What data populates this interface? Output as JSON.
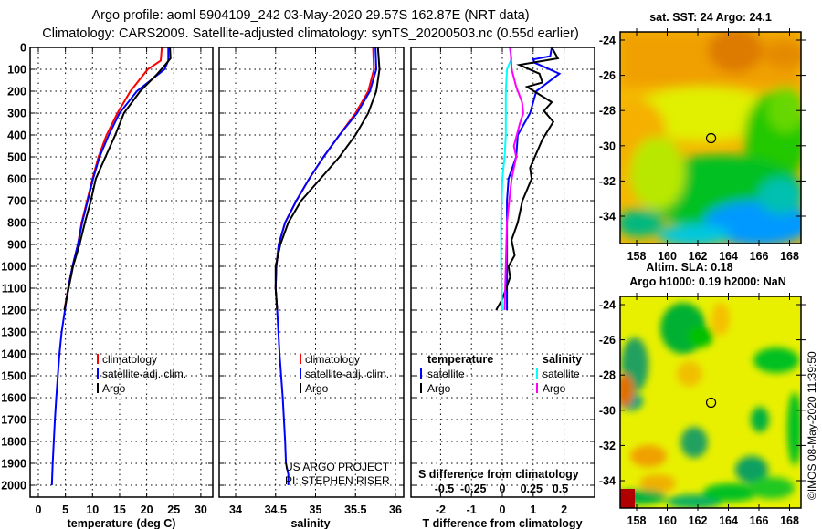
{
  "header": {
    "title_line1": "Argo profile: aoml 5904109_242 03-May-2020 29.57S 162.87E (NRT data)",
    "title_line2": "Climatology: CARS2009. Satellite-adjusted climatology: synTS_20200503.nc (0.55d earlier)"
  },
  "colors": {
    "climatology": "#ff0000",
    "satellite": "#0000ff",
    "argo": "#000000",
    "sat_salinity": "#00ffff",
    "argo_salinity": "#ff00ff"
  },
  "chart_data": [
    {
      "type": "line",
      "id": "temperature",
      "xlabel": "temperature (deg C)",
      "ylabel": "depth",
      "xlim": [
        -1,
        31
      ],
      "ylim": [
        2000,
        0
      ],
      "xticks": [
        "0",
        "5",
        "10",
        "15",
        "20",
        "25",
        "30"
      ],
      "yticks": [
        "0",
        "100",
        "200",
        "300",
        "400",
        "500",
        "600",
        "700",
        "800",
        "900",
        "1000",
        "1100",
        "1200",
        "1300",
        "1400",
        "1500",
        "1600",
        "1700",
        "1800",
        "1900",
        "2000"
      ],
      "legend": [
        "climatology",
        "satellite-adj. clim.",
        "Argo"
      ],
      "series": [
        {
          "name": "climatology",
          "color": "#ff0000",
          "points": [
            [
              0,
              22.8
            ],
            [
              60,
              22.6
            ],
            [
              100,
              20.2
            ],
            [
              200,
              17
            ],
            [
              300,
              14.6
            ],
            [
              400,
              12.6
            ],
            [
              500,
              11.1
            ],
            [
              600,
              10
            ],
            [
              700,
              9
            ],
            [
              800,
              8
            ],
            [
              900,
              7.3
            ],
            [
              1000,
              6.3
            ],
            [
              1100,
              5.5
            ],
            [
              1200,
              4.8
            ]
          ]
        },
        {
          "name": "satellite-adj. clim.",
          "color": "#0000ff",
          "points": [
            [
              0,
              24
            ],
            [
              60,
              24
            ],
            [
              100,
              23.3
            ],
            [
              200,
              18.2
            ],
            [
              300,
              15
            ],
            [
              400,
              13
            ],
            [
              500,
              11.3
            ],
            [
              600,
              10.1
            ],
            [
              700,
              9.1
            ],
            [
              800,
              8.1
            ],
            [
              900,
              7.3
            ],
            [
              1000,
              6.3
            ],
            [
              1100,
              5.5
            ],
            [
              1200,
              4.9
            ],
            [
              1300,
              4.3
            ],
            [
              1400,
              3.9
            ],
            [
              1500,
              3.6
            ],
            [
              1600,
              3.3
            ],
            [
              1700,
              3.05
            ],
            [
              1800,
              2.85
            ],
            [
              1900,
              2.65
            ],
            [
              2000,
              2.5
            ]
          ]
        },
        {
          "name": "Argo",
          "color": "#000000",
          "points": [
            [
              0,
              24.3
            ],
            [
              50,
              24.4
            ],
            [
              80,
              23.4
            ],
            [
              120,
              22
            ],
            [
              200,
              18.8
            ],
            [
              300,
              15.8
            ],
            [
              400,
              14.2
            ],
            [
              500,
              12.4
            ],
            [
              600,
              10.6
            ],
            [
              700,
              9.7
            ],
            [
              800,
              8.6
            ],
            [
              900,
              7.6
            ],
            [
              1000,
              6.4
            ],
            [
              1100,
              5.6
            ],
            [
              1200,
              4.8
            ]
          ]
        }
      ]
    },
    {
      "type": "line",
      "id": "salinity",
      "xlabel": "salinity",
      "xlim": [
        33.8,
        36.1
      ],
      "ylim": [
        2000,
        0
      ],
      "xticks": [
        "34",
        "34.5",
        "35",
        "35.5",
        "36"
      ],
      "legend": [
        "climatology",
        "satellite-adj. clim.",
        "Argo"
      ],
      "series": [
        {
          "name": "climatology",
          "color": "#ff0000",
          "points": [
            [
              0,
              35.72
            ],
            [
              100,
              35.73
            ],
            [
              200,
              35.66
            ],
            [
              300,
              35.5
            ],
            [
              400,
              35.3
            ],
            [
              500,
              35.1
            ],
            [
              600,
              34.92
            ],
            [
              700,
              34.76
            ],
            [
              800,
              34.62
            ],
            [
              900,
              34.54
            ],
            [
              1000,
              34.51
            ],
            [
              1100,
              34.5
            ],
            [
              1200,
              34.52
            ]
          ]
        },
        {
          "name": "satellite-adj. clim.",
          "color": "#0000ff",
          "points": [
            [
              0,
              35.75
            ],
            [
              100,
              35.76
            ],
            [
              200,
              35.68
            ],
            [
              300,
              35.52
            ],
            [
              400,
              35.3
            ],
            [
              500,
              35.1
            ],
            [
              600,
              34.92
            ],
            [
              700,
              34.76
            ],
            [
              800,
              34.62
            ],
            [
              900,
              34.54
            ],
            [
              1000,
              34.51
            ],
            [
              1100,
              34.5
            ],
            [
              1200,
              34.52
            ],
            [
              1400,
              34.55
            ],
            [
              1600,
              34.59
            ],
            [
              1800,
              34.62
            ],
            [
              1900,
              34.63
            ],
            [
              1950,
              34.66
            ],
            [
              2000,
              34.66
            ]
          ]
        },
        {
          "name": "Argo",
          "color": "#000000",
          "points": [
            [
              0,
              35.78
            ],
            [
              100,
              35.8
            ],
            [
              200,
              35.76
            ],
            [
              300,
              35.66
            ],
            [
              400,
              35.5
            ],
            [
              500,
              35.3
            ],
            [
              600,
              35.06
            ],
            [
              700,
              34.82
            ],
            [
              800,
              34.66
            ],
            [
              900,
              34.56
            ],
            [
              1000,
              34.5
            ],
            [
              1100,
              34.5
            ],
            [
              1200,
              34.52
            ]
          ]
        }
      ]
    },
    {
      "type": "line",
      "id": "differences",
      "xlabel": "T difference from climatology",
      "xlabel2": "S difference from climatology",
      "xlim": [
        -2.9,
        3
      ],
      "ylim": [
        2000,
        0
      ],
      "xticks": [
        "-2",
        "-1",
        "0",
        "1",
        "2"
      ],
      "xticks2": [
        "-0.5",
        "-0.25",
        "0",
        "0.25",
        "0.5"
      ],
      "legend_headers": [
        "temperature",
        "salinity"
      ],
      "legend": [
        "satellite",
        "Argo",
        "satellite",
        "Argo"
      ],
      "series": [
        {
          "name": "satellite",
          "quantity": "T",
          "color": "#0000ff",
          "points": [
            [
              0,
              1.6
            ],
            [
              40,
              1.55
            ],
            [
              55,
              1.0
            ],
            [
              70,
              1.05
            ],
            [
              120,
              1.85
            ],
            [
              200,
              1.1
            ],
            [
              300,
              0.9
            ],
            [
              400,
              0.5
            ],
            [
              500,
              0.45
            ],
            [
              600,
              0.2
            ],
            [
              700,
              0.15
            ],
            [
              800,
              0.15
            ],
            [
              1000,
              0.15
            ],
            [
              1200,
              0.15
            ]
          ]
        },
        {
          "name": "Argo",
          "quantity": "T",
          "color": "#000000",
          "points": [
            [
              0,
              1.6
            ],
            [
              50,
              1.8
            ],
            [
              80,
              0.55
            ],
            [
              120,
              1.2
            ],
            [
              160,
              1.3
            ],
            [
              180,
              0.8
            ],
            [
              250,
              1.6
            ],
            [
              290,
              1.35
            ],
            [
              340,
              1.65
            ],
            [
              420,
              1.3
            ],
            [
              550,
              0.9
            ],
            [
              600,
              0.95
            ],
            [
              700,
              0.65
            ],
            [
              800,
              0.5
            ],
            [
              880,
              0.3
            ],
            [
              950,
              0.4
            ],
            [
              1000,
              0.2
            ],
            [
              1050,
              0.25
            ],
            [
              1150,
              0.0
            ],
            [
              1200,
              -0.2
            ]
          ]
        },
        {
          "name": "satellite",
          "quantity": "S",
          "color": "#00ffff",
          "points": [
            [
              0,
              0.06
            ],
            [
              50,
              0.08
            ],
            [
              100,
              0.04
            ],
            [
              200,
              0.03
            ],
            [
              400,
              0.03
            ],
            [
              500,
              0.02
            ],
            [
              600,
              0.0
            ],
            [
              800,
              -0.01
            ],
            [
              1000,
              -0.01
            ],
            [
              1200,
              0.0
            ]
          ]
        },
        {
          "name": "Argo",
          "quantity": "S",
          "color": "#ff00ff",
          "points": [
            [
              0,
              0.07
            ],
            [
              100,
              0.08
            ],
            [
              180,
              0.12
            ],
            [
              250,
              0.17
            ],
            [
              300,
              0.18
            ],
            [
              350,
              0.15
            ],
            [
              450,
              0.1
            ],
            [
              500,
              0.12
            ],
            [
              600,
              0.08
            ],
            [
              700,
              0.06
            ],
            [
              800,
              0.04
            ],
            [
              1000,
              0.03
            ],
            [
              1200,
              0.02
            ]
          ]
        }
      ]
    }
  ],
  "credits": {
    "line1": "US ARGO PROJECT",
    "line2": "PI: STEPHEN RISER"
  },
  "maps": {
    "sst": {
      "title": "sat. SST: 24 Argo: 24.1"
    },
    "sla": {
      "title1": "Altim. SLA: 0.18",
      "title2": "Argo h1000: 0.19 h2000: NaN"
    },
    "lat_ticks": [
      "-24",
      "-26",
      "-28",
      "-30",
      "-32",
      "-34"
    ],
    "lon_ticks": [
      "158",
      "160",
      "162",
      "164",
      "166",
      "168"
    ],
    "profile_location": {
      "lat": -29.57,
      "lon": 162.87
    }
  },
  "timestamp": "©IMOS 08-May-2020 11:39:50"
}
